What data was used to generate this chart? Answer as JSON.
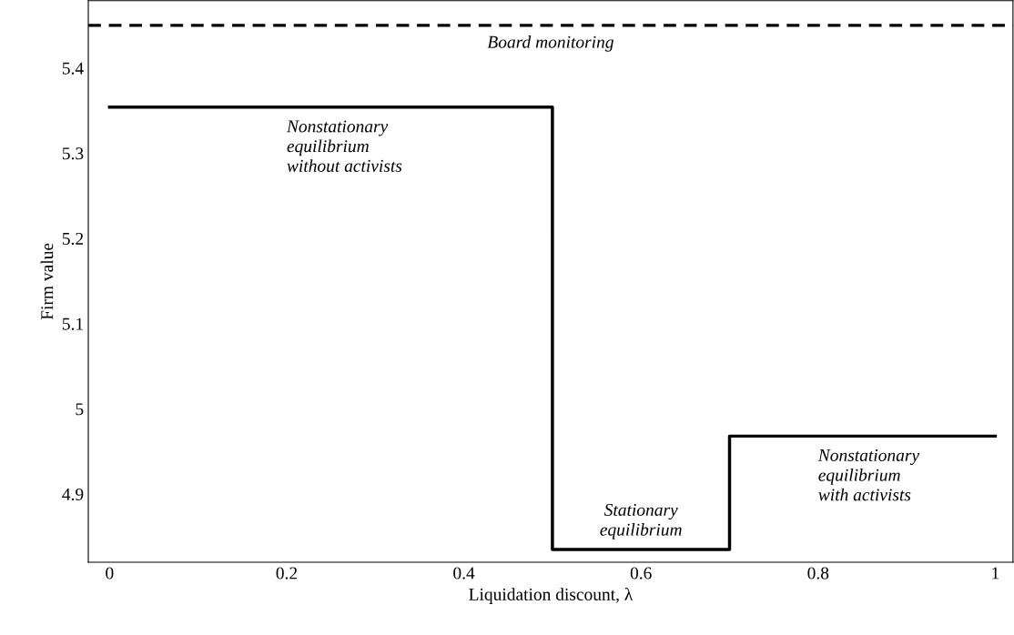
{
  "chart_data": {
    "type": "step",
    "xlabel": "Liquidation discount, λ",
    "ylabel": "Firm value",
    "x": [
      0,
      0.5,
      0.7,
      1
    ],
    "series": [
      {
        "color": "#000000",
        "values": [
          5.354,
          4.835,
          4.968,
          4.968
        ]
      }
    ],
    "xlim": [
      -0.024,
      1.02
    ],
    "ylim": [
      4.82,
      5.479
    ],
    "xticks": [
      0,
      0.2,
      0.4,
      0.6,
      0.8,
      1
    ],
    "yticks": [
      4.9,
      5,
      5.1,
      5.2,
      5.3,
      5.4
    ],
    "ref_lines": [
      {
        "axis": "y",
        "value": 5.45,
        "label": "Board monitoring",
        "color": "#000000",
        "line_style": "dashed"
      }
    ],
    "annotations": [
      {
        "text": "Nonstationary\nequilibrium\nwithout activists",
        "x": 0.2,
        "y": 5.354
      },
      {
        "text": "Stationary\nequilibrium",
        "x": 0.6,
        "y": 4.835
      },
      {
        "text": "Nonstationary\nequilibrium\nwith activists",
        "x": 0.8,
        "y": 4.968
      }
    ],
    "grid": false,
    "line_style": "solid",
    "marker": "none"
  }
}
